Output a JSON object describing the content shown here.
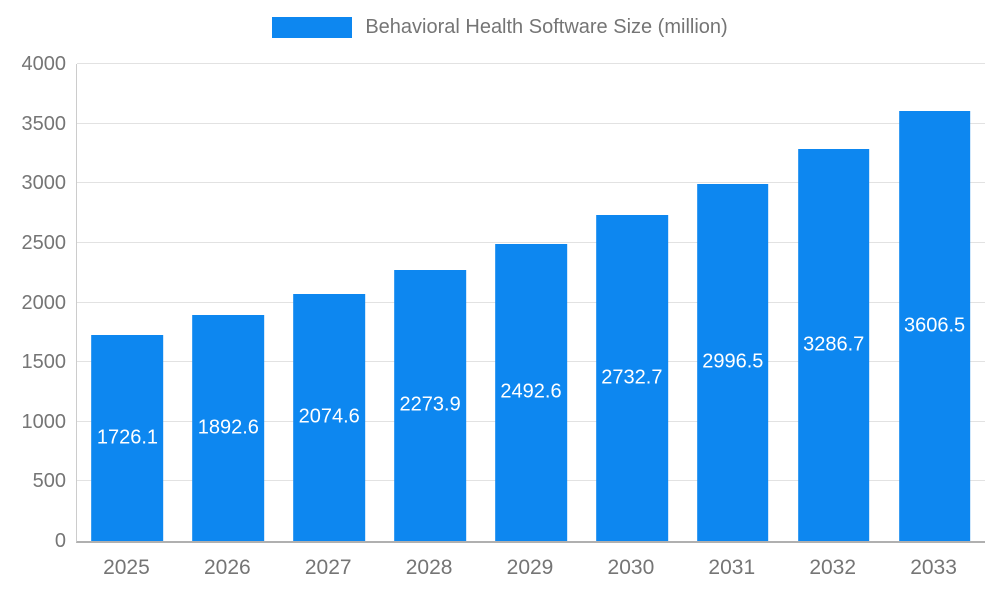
{
  "chart_data": {
    "type": "bar",
    "title": "Behavioral Health Software Size (million)",
    "categories": [
      "2025",
      "2026",
      "2027",
      "2028",
      "2029",
      "2030",
      "2031",
      "2032",
      "2033"
    ],
    "values": [
      1726.1,
      1892.6,
      2074.6,
      2273.9,
      2492.6,
      2732.7,
      2996.5,
      3286.7,
      3606.5
    ],
    "value_labels": [
      "1726.1",
      "1892.6",
      "2074.6",
      "2273.9",
      "2492.6",
      "2732.7",
      "2996.5",
      "3286.7",
      "3606.5"
    ],
    "xlabel": "",
    "ylabel": "",
    "ylim": [
      0,
      4000
    ],
    "yticks": [
      0,
      500,
      1000,
      1500,
      2000,
      2500,
      3000,
      3500,
      4000
    ],
    "legend_position": "top",
    "grid": true,
    "colors": {
      "bar": "#0d87f0",
      "bar_label_text": "#ffffff",
      "axis_text": "#757575",
      "gridline": "#e2e2e2",
      "axis_line": "#b0b0b0",
      "background": "#ffffff"
    }
  }
}
